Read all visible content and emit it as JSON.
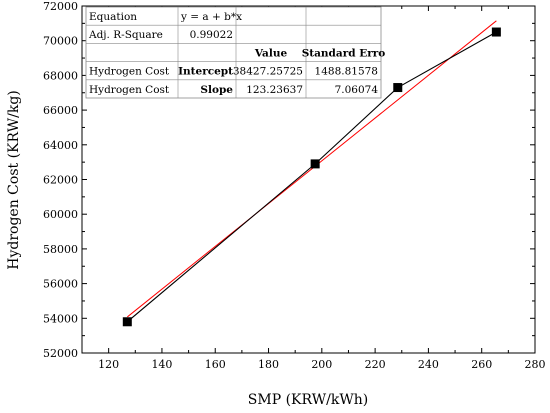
{
  "chart_data": {
    "type": "line",
    "xlabel": "SMP (KRW/kWh)",
    "ylabel": "Hydrogen Cost (KRW/kg)",
    "xlim": [
      110,
      280
    ],
    "ylim": [
      52000,
      72000
    ],
    "x_ticks": [
      "120",
      "140",
      "160",
      "180",
      "200",
      "220",
      "240",
      "260",
      "280"
    ],
    "y_ticks": [
      "52000",
      "54000",
      "56000",
      "58000",
      "60000",
      "62000",
      "64000",
      "66000",
      "68000",
      "70000",
      "72000"
    ],
    "series": [
      {
        "kind": "data",
        "color": "#000000",
        "x": [
          127,
          197.5,
          228.5,
          265.5
        ],
        "y": [
          53800,
          62900,
          67300,
          70500
        ]
      },
      {
        "kind": "fit",
        "color": "#ff0000",
        "x": [
          127,
          265.5
        ],
        "y": [
          54079,
          71147
        ]
      }
    ],
    "fit_table": {
      "rows": [
        [
          "Equation",
          "y = a + b*x",
          "",
          ""
        ],
        [
          "Adj. R-Square",
          "0.99022",
          "",
          ""
        ],
        [
          "",
          "",
          "Value",
          "Standard Erro"
        ],
        [
          "Hydrogen Cost",
          "Intercept",
          "38427.25725",
          "1488.81578"
        ],
        [
          "Hydrogen Cost",
          "Slope",
          "123.23637",
          "7.06074"
        ]
      ]
    }
  }
}
